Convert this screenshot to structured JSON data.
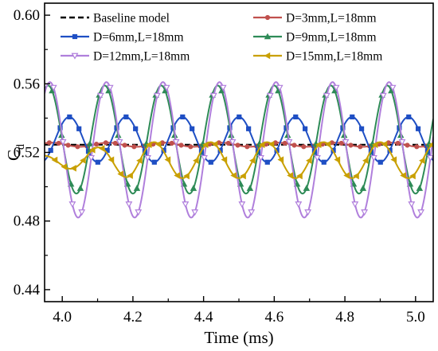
{
  "chart_data": {
    "type": "line",
    "title": "",
    "xlabel": "Time (ms)",
    "ylabel_main": "C",
    "ylabel_sub": "d",
    "xlim": [
      3.95,
      5.05
    ],
    "ylim": [
      0.433,
      0.607
    ],
    "xticks": [
      4.0,
      4.2,
      4.4,
      4.6,
      4.8,
      5.0
    ],
    "xtick_labels": [
      "4.0",
      "4.2",
      "4.4",
      "4.6",
      "4.8",
      "5.0"
    ],
    "yticks": [
      0.44,
      0.48,
      0.52,
      0.56,
      0.6
    ],
    "ytick_labels": [
      "0.44",
      "0.48",
      "0.52",
      "0.56",
      "0.60"
    ],
    "grid": false,
    "legend_position": "top",
    "series": [
      {
        "name": "Baseline model",
        "color": "#000000",
        "dash": "dashed",
        "marker": "none",
        "mean": 0.5245,
        "amplitude": 0.0,
        "period": 0.16,
        "peak_time": 4.0,
        "amp_start": 0.0,
        "ramp_end": 3.95,
        "x_start": 3.95
      },
      {
        "name": "D=3mm,L=18mm",
        "color": "#c0504d",
        "dash": "solid",
        "marker": "circle",
        "mean": 0.5245,
        "amplitude": 0.0012,
        "period": 0.16,
        "peak_time": 3.97,
        "amp_start": 0.0012,
        "ramp_end": 3.95,
        "x_start": 3.95
      },
      {
        "name": "D=6mm,L=18mm",
        "color": "#1f4fc4",
        "dash": "solid",
        "marker": "square",
        "mean": 0.5275,
        "amplitude": 0.0132,
        "period": 0.16,
        "peak_time": 4.18,
        "amp_start": 0.0132,
        "ramp_end": 3.95,
        "x_start": 3.95
      },
      {
        "name": "D=9mm,L=18mm",
        "color": "#2e8b57",
        "dash": "solid",
        "marker": "triangle-up",
        "mean": 0.5275,
        "amplitude": 0.0315,
        "period": 0.16,
        "peak_time": 4.28,
        "amp_start": 0.0315,
        "ramp_end": 3.95,
        "x_start": 3.95
      },
      {
        "name": "D=12mm,L=18mm",
        "color": "#b07fdc",
        "dash": "solid",
        "marker": "triangle-down",
        "mean": 0.5215,
        "amplitude": 0.0395,
        "period": 0.16,
        "peak_time": 4.125,
        "amp_start": 0.0395,
        "ramp_end": 3.95,
        "x_start": 3.95
      },
      {
        "name": "D=15mm,L=18mm",
        "color": "#c9a000",
        "dash": "solid",
        "marker": "triangle-left",
        "mean": 0.5155,
        "amplitude": 0.0105,
        "period": 0.16,
        "peak_time": 4.1,
        "amp_start": 0.0028,
        "ramp_end": 4.2,
        "x_start": 3.95
      }
    ]
  }
}
